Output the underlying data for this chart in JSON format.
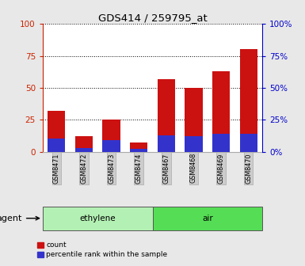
{
  "title": "GDS414 / 259795_at",
  "samples": [
    "GSM8471",
    "GSM8472",
    "GSM8473",
    "GSM8474",
    "GSM8467",
    "GSM8468",
    "GSM8469",
    "GSM8470"
  ],
  "red_values": [
    32,
    12,
    25,
    7,
    57,
    50,
    63,
    80
  ],
  "blue_values": [
    10,
    3,
    9,
    2,
    13,
    12,
    14,
    14
  ],
  "groups": [
    {
      "label": "ethylene",
      "start": 0,
      "end": 4,
      "color": "#b3f0b3"
    },
    {
      "label": "air",
      "start": 4,
      "end": 8,
      "color": "#55dd55"
    }
  ],
  "group_label": "agent",
  "ylim": [
    0,
    100
  ],
  "yticks": [
    0,
    25,
    50,
    75,
    100
  ],
  "bar_color_red": "#cc1111",
  "bar_color_blue": "#3333cc",
  "bar_width": 0.65,
  "bg_color": "#e8e8e8",
  "plot_bg": "#ffffff",
  "left_tick_color": "#cc2200",
  "right_tick_color": "#0000cc",
  "legend_items": [
    "count",
    "percentile rank within the sample"
  ],
  "tick_label_bg": "#cccccc",
  "tick_label_ec": "#aaaaaa"
}
